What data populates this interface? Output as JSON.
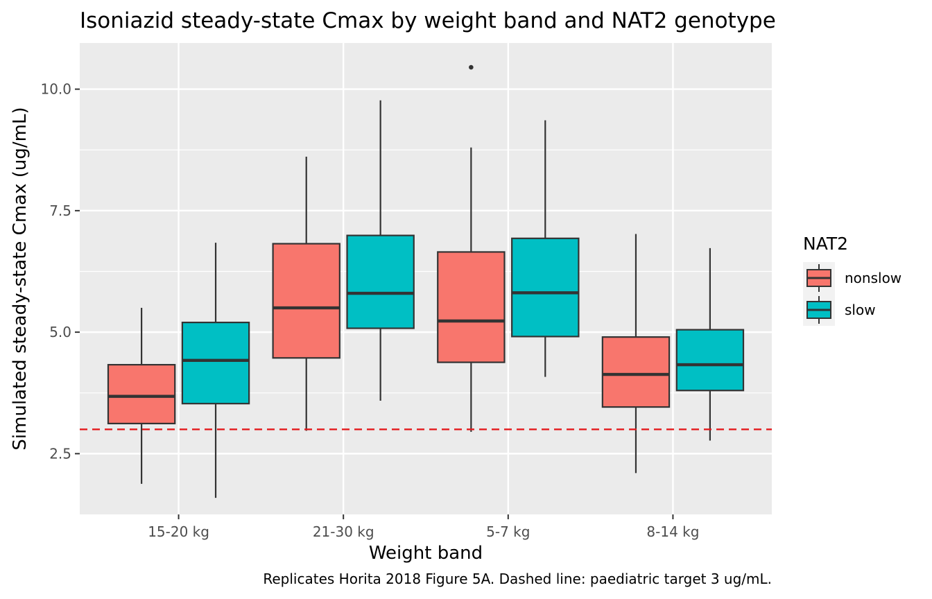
{
  "chart_data": {
    "type": "box",
    "title": "Isoniazid steady-state Cmax by weight band and NAT2 genotype",
    "xlabel": "Weight band",
    "ylabel": "Simulated steady-state Cmax (ug/mL)",
    "caption": "Replicates Horita 2018 Figure 5A. Dashed line: paediatric target 3 ug/mL.",
    "categories": [
      "15-20 kg",
      "21-30 kg",
      "5-7 kg",
      "8-14 kg"
    ],
    "ylim": [
      1.25,
      10.95
    ],
    "yticks": [
      2.5,
      5.0,
      7.5,
      10.0
    ],
    "ytick_labels": [
      "2.5",
      "5.0",
      "7.5",
      "10.0"
    ],
    "grid": true,
    "legend": {
      "title": "NAT2",
      "position": "right"
    },
    "reference_line": {
      "y": 3,
      "style": "dashed",
      "color": "#e41a1c"
    },
    "series": [
      {
        "name": "nonslow",
        "color": "#F8766D",
        "boxes": [
          {
            "category": "15-20 kg",
            "min": 1.88,
            "q1": 3.12,
            "median": 3.68,
            "q3": 4.33,
            "max": 5.5,
            "outliers": []
          },
          {
            "category": "21-30 kg",
            "min": 2.97,
            "q1": 4.47,
            "median": 5.5,
            "q3": 6.82,
            "max": 8.61,
            "outliers": []
          },
          {
            "category": "5-7 kg",
            "min": 2.95,
            "q1": 4.38,
            "median": 5.23,
            "q3": 6.65,
            "max": 8.8,
            "outliers": [
              10.45
            ]
          },
          {
            "category": "8-14 kg",
            "min": 2.1,
            "q1": 3.46,
            "median": 4.13,
            "q3": 4.9,
            "max": 7.02,
            "outliers": []
          }
        ]
      },
      {
        "name": "slow",
        "color": "#00BFC4",
        "boxes": [
          {
            "category": "15-20 kg",
            "min": 1.59,
            "q1": 3.53,
            "median": 4.42,
            "q3": 5.2,
            "max": 6.84,
            "outliers": []
          },
          {
            "category": "21-30 kg",
            "min": 3.59,
            "q1": 5.08,
            "median": 5.8,
            "q3": 6.99,
            "max": 9.77,
            "outliers": []
          },
          {
            "category": "5-7 kg",
            "min": 4.08,
            "q1": 4.91,
            "median": 5.81,
            "q3": 6.93,
            "max": 9.36,
            "outliers": []
          },
          {
            "category": "8-14 kg",
            "min": 2.77,
            "q1": 3.8,
            "median": 4.33,
            "q3": 5.05,
            "max": 6.73,
            "outliers": []
          }
        ]
      }
    ]
  }
}
